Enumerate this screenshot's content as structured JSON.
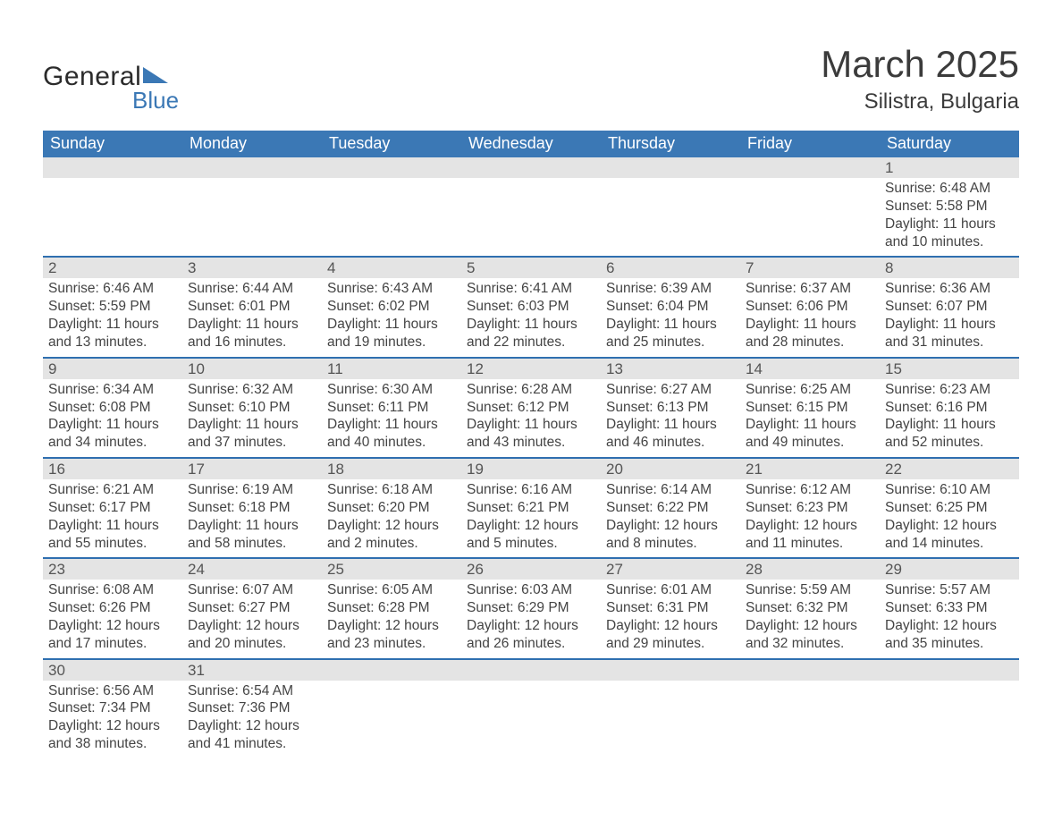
{
  "styling": {
    "header_blue": "#3b78b5",
    "row_separator_blue": "#2f6fb0",
    "daynum_strip_grey": "#e4e4e4",
    "text_grey": "#4a4a4a",
    "title_grey": "#3b3b3b",
    "page_bg": "#ffffff",
    "title_fontsize_pt": 32,
    "location_fontsize_pt": 18,
    "weekday_header_fontsize_pt": 13,
    "body_fontsize_pt": 12,
    "columns": 7,
    "rows": 6
  },
  "logo": {
    "line1": "General",
    "line2": "Blue"
  },
  "title": {
    "month": "March 2025",
    "location": "Silistra, Bulgaria"
  },
  "weekdays": [
    "Sunday",
    "Monday",
    "Tuesday",
    "Wednesday",
    "Thursday",
    "Friday",
    "Saturday"
  ],
  "weeks": [
    [
      null,
      null,
      null,
      null,
      null,
      null,
      {
        "n": "1",
        "sr": "Sunrise: 6:48 AM",
        "ss": "Sunset: 5:58 PM",
        "d1": "Daylight: 11 hours",
        "d2": "and 10 minutes."
      }
    ],
    [
      {
        "n": "2",
        "sr": "Sunrise: 6:46 AM",
        "ss": "Sunset: 5:59 PM",
        "d1": "Daylight: 11 hours",
        "d2": "and 13 minutes."
      },
      {
        "n": "3",
        "sr": "Sunrise: 6:44 AM",
        "ss": "Sunset: 6:01 PM",
        "d1": "Daylight: 11 hours",
        "d2": "and 16 minutes."
      },
      {
        "n": "4",
        "sr": "Sunrise: 6:43 AM",
        "ss": "Sunset: 6:02 PM",
        "d1": "Daylight: 11 hours",
        "d2": "and 19 minutes."
      },
      {
        "n": "5",
        "sr": "Sunrise: 6:41 AM",
        "ss": "Sunset: 6:03 PM",
        "d1": "Daylight: 11 hours",
        "d2": "and 22 minutes."
      },
      {
        "n": "6",
        "sr": "Sunrise: 6:39 AM",
        "ss": "Sunset: 6:04 PM",
        "d1": "Daylight: 11 hours",
        "d2": "and 25 minutes."
      },
      {
        "n": "7",
        "sr": "Sunrise: 6:37 AM",
        "ss": "Sunset: 6:06 PM",
        "d1": "Daylight: 11 hours",
        "d2": "and 28 minutes."
      },
      {
        "n": "8",
        "sr": "Sunrise: 6:36 AM",
        "ss": "Sunset: 6:07 PM",
        "d1": "Daylight: 11 hours",
        "d2": "and 31 minutes."
      }
    ],
    [
      {
        "n": "9",
        "sr": "Sunrise: 6:34 AM",
        "ss": "Sunset: 6:08 PM",
        "d1": "Daylight: 11 hours",
        "d2": "and 34 minutes."
      },
      {
        "n": "10",
        "sr": "Sunrise: 6:32 AM",
        "ss": "Sunset: 6:10 PM",
        "d1": "Daylight: 11 hours",
        "d2": "and 37 minutes."
      },
      {
        "n": "11",
        "sr": "Sunrise: 6:30 AM",
        "ss": "Sunset: 6:11 PM",
        "d1": "Daylight: 11 hours",
        "d2": "and 40 minutes."
      },
      {
        "n": "12",
        "sr": "Sunrise: 6:28 AM",
        "ss": "Sunset: 6:12 PM",
        "d1": "Daylight: 11 hours",
        "d2": "and 43 minutes."
      },
      {
        "n": "13",
        "sr": "Sunrise: 6:27 AM",
        "ss": "Sunset: 6:13 PM",
        "d1": "Daylight: 11 hours",
        "d2": "and 46 minutes."
      },
      {
        "n": "14",
        "sr": "Sunrise: 6:25 AM",
        "ss": "Sunset: 6:15 PM",
        "d1": "Daylight: 11 hours",
        "d2": "and 49 minutes."
      },
      {
        "n": "15",
        "sr": "Sunrise: 6:23 AM",
        "ss": "Sunset: 6:16 PM",
        "d1": "Daylight: 11 hours",
        "d2": "and 52 minutes."
      }
    ],
    [
      {
        "n": "16",
        "sr": "Sunrise: 6:21 AM",
        "ss": "Sunset: 6:17 PM",
        "d1": "Daylight: 11 hours",
        "d2": "and 55 minutes."
      },
      {
        "n": "17",
        "sr": "Sunrise: 6:19 AM",
        "ss": "Sunset: 6:18 PM",
        "d1": "Daylight: 11 hours",
        "d2": "and 58 minutes."
      },
      {
        "n": "18",
        "sr": "Sunrise: 6:18 AM",
        "ss": "Sunset: 6:20 PM",
        "d1": "Daylight: 12 hours",
        "d2": "and 2 minutes."
      },
      {
        "n": "19",
        "sr": "Sunrise: 6:16 AM",
        "ss": "Sunset: 6:21 PM",
        "d1": "Daylight: 12 hours",
        "d2": "and 5 minutes."
      },
      {
        "n": "20",
        "sr": "Sunrise: 6:14 AM",
        "ss": "Sunset: 6:22 PM",
        "d1": "Daylight: 12 hours",
        "d2": "and 8 minutes."
      },
      {
        "n": "21",
        "sr": "Sunrise: 6:12 AM",
        "ss": "Sunset: 6:23 PM",
        "d1": "Daylight: 12 hours",
        "d2": "and 11 minutes."
      },
      {
        "n": "22",
        "sr": "Sunrise: 6:10 AM",
        "ss": "Sunset: 6:25 PM",
        "d1": "Daylight: 12 hours",
        "d2": "and 14 minutes."
      }
    ],
    [
      {
        "n": "23",
        "sr": "Sunrise: 6:08 AM",
        "ss": "Sunset: 6:26 PM",
        "d1": "Daylight: 12 hours",
        "d2": "and 17 minutes."
      },
      {
        "n": "24",
        "sr": "Sunrise: 6:07 AM",
        "ss": "Sunset: 6:27 PM",
        "d1": "Daylight: 12 hours",
        "d2": "and 20 minutes."
      },
      {
        "n": "25",
        "sr": "Sunrise: 6:05 AM",
        "ss": "Sunset: 6:28 PM",
        "d1": "Daylight: 12 hours",
        "d2": "and 23 minutes."
      },
      {
        "n": "26",
        "sr": "Sunrise: 6:03 AM",
        "ss": "Sunset: 6:29 PM",
        "d1": "Daylight: 12 hours",
        "d2": "and 26 minutes."
      },
      {
        "n": "27",
        "sr": "Sunrise: 6:01 AM",
        "ss": "Sunset: 6:31 PM",
        "d1": "Daylight: 12 hours",
        "d2": "and 29 minutes."
      },
      {
        "n": "28",
        "sr": "Sunrise: 5:59 AM",
        "ss": "Sunset: 6:32 PM",
        "d1": "Daylight: 12 hours",
        "d2": "and 32 minutes."
      },
      {
        "n": "29",
        "sr": "Sunrise: 5:57 AM",
        "ss": "Sunset: 6:33 PM",
        "d1": "Daylight: 12 hours",
        "d2": "and 35 minutes."
      }
    ],
    [
      {
        "n": "30",
        "sr": "Sunrise: 6:56 AM",
        "ss": "Sunset: 7:34 PM",
        "d1": "Daylight: 12 hours",
        "d2": "and 38 minutes."
      },
      {
        "n": "31",
        "sr": "Sunrise: 6:54 AM",
        "ss": "Sunset: 7:36 PM",
        "d1": "Daylight: 12 hours",
        "d2": "and 41 minutes."
      },
      null,
      null,
      null,
      null,
      null
    ]
  ]
}
